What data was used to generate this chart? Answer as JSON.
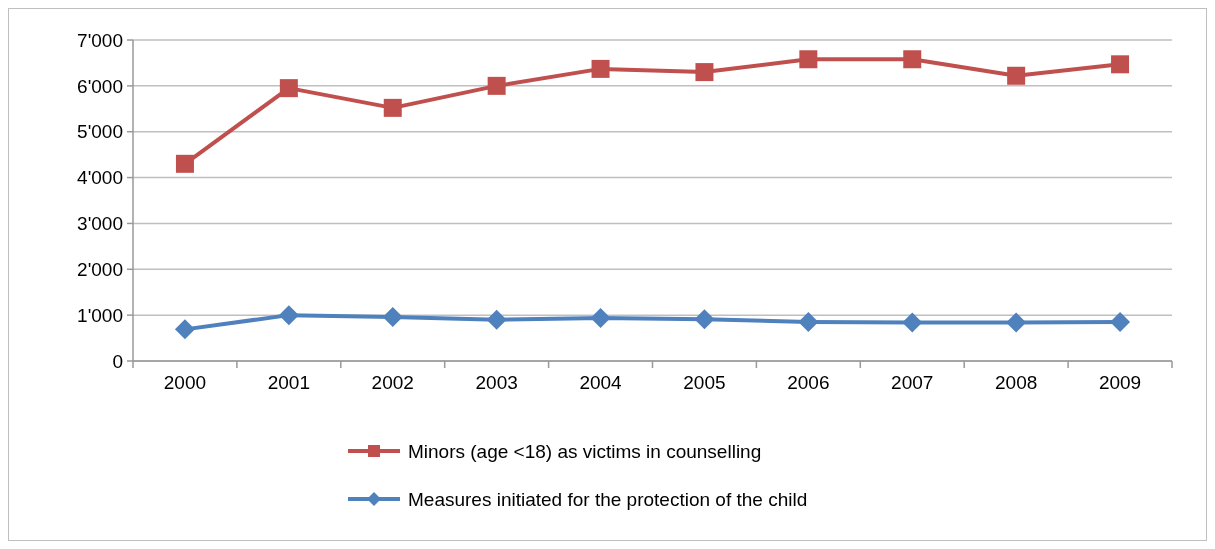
{
  "chart_data": {
    "type": "line",
    "categories": [
      "2000",
      "2001",
      "2002",
      "2003",
      "2004",
      "2005",
      "2006",
      "2007",
      "2008",
      "2009"
    ],
    "series": [
      {
        "name": "Minors (age <18) as victims in counselling",
        "color": "#c0504d",
        "marker": "square",
        "values": [
          4300,
          5950,
          5520,
          6000,
          6370,
          6300,
          6580,
          6580,
          6220,
          6470
        ]
      },
      {
        "name": "Measures initiated for the protection of the child",
        "color": "#4f81bd",
        "marker": "diamond",
        "values": [
          690,
          1000,
          960,
          900,
          940,
          910,
          850,
          840,
          840,
          850
        ]
      }
    ],
    "ylim": [
      0,
      7000
    ],
    "yticks": [
      {
        "value": 0,
        "label": "0"
      },
      {
        "value": 1000,
        "label": "1'000"
      },
      {
        "value": 2000,
        "label": "2'000"
      },
      {
        "value": 3000,
        "label": "3'000"
      },
      {
        "value": 4000,
        "label": "4'000"
      },
      {
        "value": 5000,
        "label": "5'000"
      },
      {
        "value": 6000,
        "label": "6'000"
      },
      {
        "value": 7000,
        "label": "7'000"
      }
    ],
    "grid": "y",
    "legend": "bottom"
  }
}
